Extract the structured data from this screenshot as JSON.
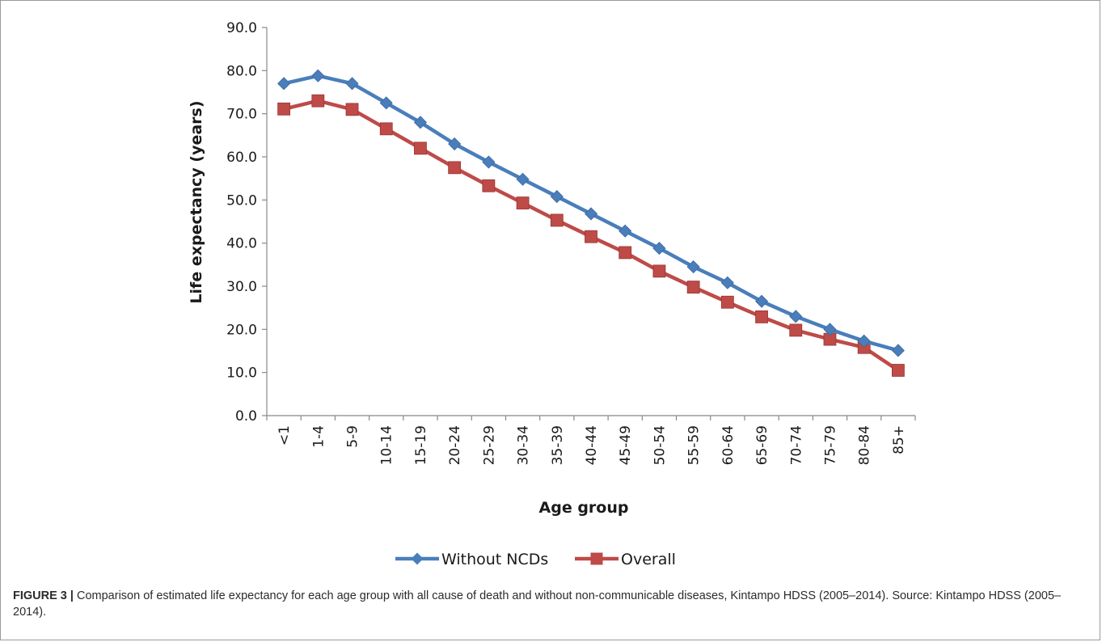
{
  "chart_data": {
    "type": "line",
    "categories": [
      "<1",
      "1-4",
      "5-9",
      "10-14",
      "15-19",
      "20-24",
      "25-29",
      "30-34",
      "35-39",
      "40-44",
      "45-49",
      "50-54",
      "55-59",
      "60-64",
      "65-69",
      "70-74",
      "75-79",
      "80-84",
      "85+"
    ],
    "series": [
      {
        "name": "Without NCDs",
        "color": "#4a7ebb",
        "marker": "diamond",
        "values": [
          77.0,
          78.8,
          77.0,
          72.5,
          68.0,
          63.0,
          58.8,
          54.8,
          50.8,
          46.8,
          42.8,
          38.8,
          34.5,
          30.8,
          26.5,
          23.0,
          20.0,
          17.3,
          15.1
        ]
      },
      {
        "name": "Overall",
        "color": "#be4b48",
        "marker": "square",
        "values": [
          71.1,
          73.0,
          71.0,
          66.5,
          62.0,
          57.5,
          53.3,
          49.3,
          45.3,
          41.5,
          37.8,
          33.5,
          29.8,
          26.3,
          22.9,
          19.8,
          17.7,
          15.8,
          10.5
        ]
      }
    ],
    "xlabel": "Age group",
    "ylabel": "Life expectancy (years)",
    "ylim": [
      0,
      90
    ],
    "yticks": [
      "0.0",
      "10.0",
      "20.0",
      "30.0",
      "40.0",
      "50.0",
      "60.0",
      "70.0",
      "80.0",
      "90.0"
    ],
    "grid": false,
    "legend": "bottom"
  },
  "caption": {
    "label": "FIGURE 3 |",
    "text": " Comparison of estimated life expectancy for each age group with all cause of death and without non-communicable diseases, Kintampo HDSS (2005–2014). Source: Kintampo HDSS (2005–2014)."
  }
}
